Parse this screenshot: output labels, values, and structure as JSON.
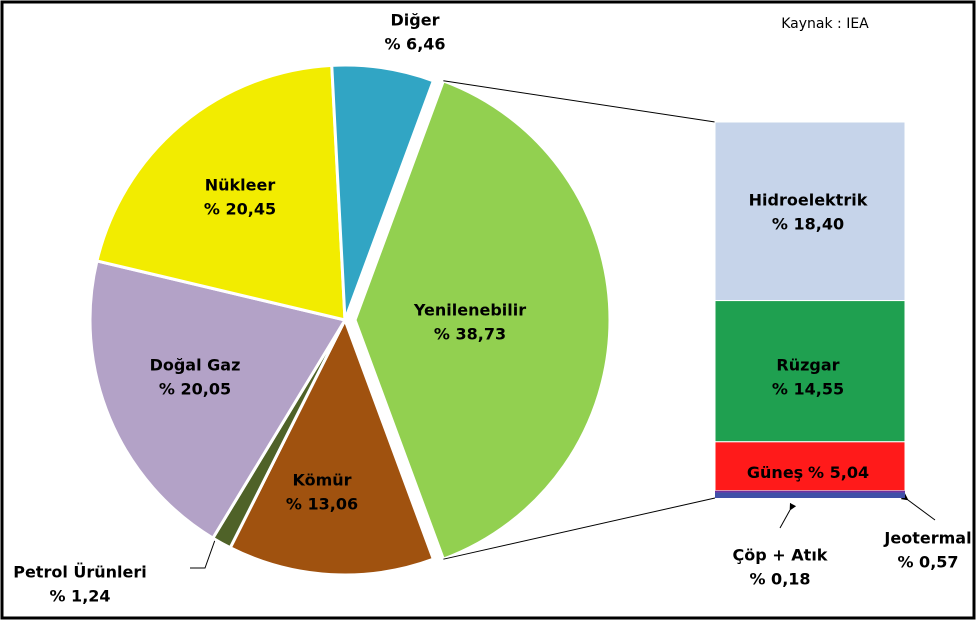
{
  "chart_data": {
    "type": "pie",
    "source": "Kaynak : IEA",
    "categories": [
      "Yenilenebilir",
      "Kömür",
      "Petrol Ürünleri",
      "Doğal Gaz",
      "Nükleer",
      "Diğer"
    ],
    "values": [
      38.73,
      13.06,
      1.24,
      20.05,
      20.45,
      6.46
    ],
    "value_labels": [
      "% 38,73",
      "% 13,06",
      "% 1,24",
      "% 20,05",
      "% 20,45",
      "% 6,46"
    ],
    "colors": [
      "#92d050",
      "#a0520f",
      "#4f6228",
      "#b3a2c7",
      "#f2ec00",
      "#31a5c4"
    ],
    "breakdown": {
      "type": "bar",
      "categories": [
        "Hidroelektrik",
        "Rüzgar",
        "Güneş",
        "Çöp + Atık",
        "Jeotermal"
      ],
      "values": [
        18.4,
        14.55,
        5.04,
        0.18,
        0.57
      ],
      "value_labels": [
        "% 18,40",
        "% 14,55",
        "% 5,04",
        "% 0,18",
        "% 0,57"
      ],
      "colors": [
        "#c6d4ea",
        "#1fa050",
        "#ff1a1a",
        "#7030a0",
        "#4050a8"
      ]
    }
  }
}
